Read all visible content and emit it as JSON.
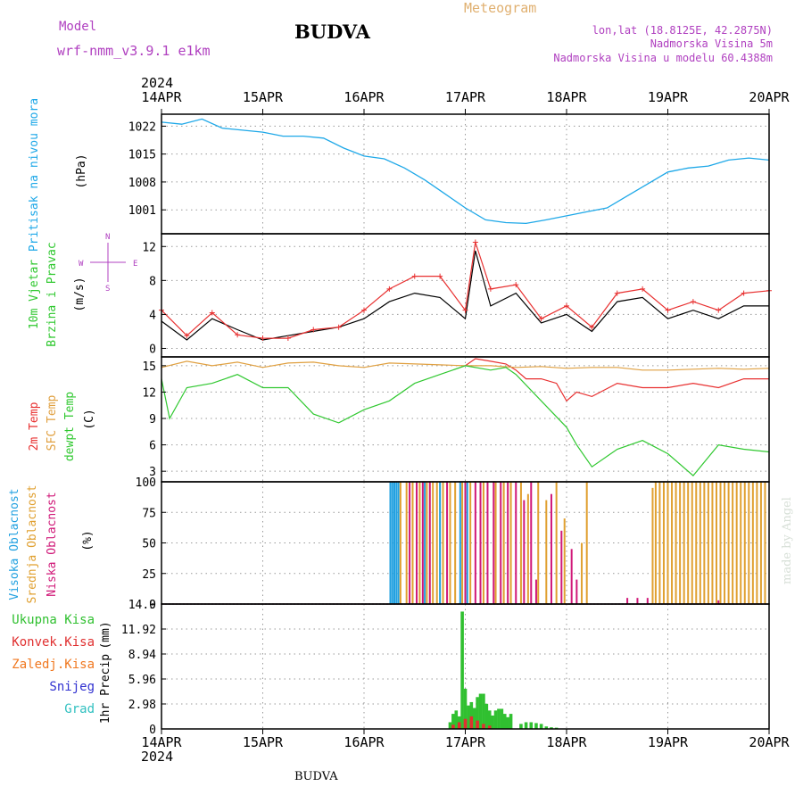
{
  "header": {
    "model_label": "Model",
    "model_name": "wrf-nmm_v3.9.1 e1km",
    "location": "BUDVA",
    "meteogram": "Meteogram",
    "lonlat": "lon,lat (18.8125E, 42.2875N)",
    "elev": "Nadmorska Visina 5m",
    "elev_model": "Nadmorska Visina u modelu 60.4388m",
    "year_top": "2024",
    "year_bottom": "2024",
    "footer_location": "BUDVA",
    "credit": "made by Angel"
  },
  "colors": {
    "pressure": "#1ea8e8",
    "temp2m": "#e83030",
    "sfc": "#e0a040",
    "dewpt": "#30c830",
    "high_cloud": "#20a0e0",
    "mid_cloud": "#e0a030",
    "low_cloud": "#d01878",
    "total_precip": "#30c030",
    "conv_precip": "#e03030",
    "frz_precip": "#f07820",
    "snow": "#3030d0",
    "hail": "#30c0c0",
    "wind_speed": "#000000",
    "wind_gust": "#e83030",
    "title": "#000000",
    "meta": "#b040c0",
    "meteogram": "#e0b070"
  },
  "chart_data": [
    {
      "type": "line",
      "panel": "pressure",
      "ylabel": "Pritisak na nivou mora",
      "unit": "(hPa)",
      "x_ticks": [
        "14APR",
        "15APR",
        "16APR",
        "17APR",
        "18APR",
        "19APR",
        "20APR"
      ],
      "ylim": [
        995,
        1025
      ],
      "yticks": [
        1001,
        1008,
        1015,
        1022
      ],
      "grid": true,
      "series": [
        {
          "x": [
            0,
            0.2,
            0.4,
            0.6,
            0.8,
            1.0,
            1.2,
            1.4,
            1.6,
            1.8,
            2.0,
            2.2,
            2.4,
            2.6,
            2.8,
            3.0,
            3.2,
            3.4,
            3.6,
            3.8,
            4.0,
            4.2,
            4.4,
            4.6,
            4.8,
            5.0,
            5.2,
            5.4,
            5.6,
            5.8,
            6.0
          ],
          "values": [
            1023,
            1022.5,
            1023.8,
            1021.5,
            1021,
            1020.5,
            1019.5,
            1019.5,
            1019,
            1016.5,
            1014.5,
            1013.8,
            1011.5,
            1008.5,
            1005,
            1001.5,
            998.5,
            997.8,
            997.6,
            998.5,
            999.5,
            1000.5,
            1001.5,
            1004.5,
            1007.5,
            1010.5,
            1011.5,
            1012,
            1013.5,
            1014,
            1013.5
          ]
        }
      ]
    },
    {
      "type": "line",
      "panel": "wind",
      "ylabel": "10m Vjetar",
      "ylabel2": "Brzina i Pravac",
      "unit": "(m/s)",
      "compass": {
        "n": "N",
        "s": "S",
        "e": "E",
        "w": "W"
      },
      "ylim": [
        -1,
        13.5
      ],
      "yticks": [
        0,
        4,
        8,
        12
      ],
      "grid": true,
      "series": [
        {
          "name": "speed",
          "x": [
            0,
            0.25,
            0.5,
            0.75,
            1.0,
            1.25,
            1.5,
            1.75,
            2.0,
            2.25,
            2.5,
            2.75,
            3.0,
            3.1,
            3.25,
            3.5,
            3.75,
            4.0,
            4.25,
            4.5,
            4.75,
            5.0,
            5.25,
            5.5,
            5.75,
            6.0
          ],
          "values": [
            3.2,
            1.0,
            3.5,
            2.2,
            1.0,
            1.5,
            2.0,
            2.5,
            3.5,
            5.5,
            6.5,
            6.0,
            3.5,
            11.5,
            5.0,
            6.5,
            3.0,
            4.0,
            2.0,
            5.5,
            6.0,
            3.5,
            4.5,
            3.5,
            5.0,
            5.0
          ]
        },
        {
          "name": "gust",
          "x": [
            0,
            0.25,
            0.5,
            0.75,
            1.0,
            1.25,
            1.5,
            1.75,
            2.0,
            2.25,
            2.5,
            2.75,
            3.0,
            3.1,
            3.25,
            3.5,
            3.75,
            4.0,
            4.25,
            4.5,
            4.75,
            5.0,
            5.25,
            5.5,
            5.75,
            6.0
          ],
          "values": [
            4.5,
            1.5,
            4.2,
            1.6,
            1.2,
            1.2,
            2.2,
            2.5,
            4.5,
            7.0,
            8.5,
            8.5,
            4.5,
            12.5,
            7.0,
            7.5,
            3.5,
            5.0,
            2.5,
            6.5,
            7.0,
            4.5,
            5.5,
            4.5,
            6.5,
            6.8
          ]
        }
      ]
    },
    {
      "type": "line",
      "panel": "temperature",
      "ylabel": "2m Temp",
      "ylabel2": "SFC Temp",
      "ylabel3": "dewpt Temp",
      "unit": "(C)",
      "ylim": [
        1.8,
        16
      ],
      "yticks": [
        3,
        6,
        9,
        12,
        15
      ],
      "grid": true,
      "series": [
        {
          "name": "2m",
          "x": [
            3.0,
            3.1,
            3.25,
            3.4,
            3.5,
            3.6,
            3.75,
            3.9,
            4.0,
            4.1,
            4.25,
            4.5,
            4.75,
            5.0,
            5.25,
            5.5,
            5.75,
            6.0
          ],
          "values": [
            15.0,
            15.8,
            15.5,
            15.2,
            14.5,
            13.5,
            13.5,
            13.0,
            11.0,
            12.0,
            11.5,
            13.0,
            12.5,
            12.5,
            13.0,
            12.5,
            13.5,
            13.5
          ]
        },
        {
          "name": "sfc",
          "x": [
            0,
            0.25,
            0.5,
            0.75,
            1.0,
            1.25,
            1.5,
            1.75,
            2.0,
            2.25,
            2.5,
            2.75,
            3.0,
            3.25,
            3.5,
            3.75,
            4.0,
            4.25,
            4.5,
            4.75,
            5.0,
            5.25,
            5.5,
            5.75,
            6.0
          ],
          "values": [
            14.8,
            15.5,
            15.0,
            15.4,
            14.8,
            15.3,
            15.4,
            15.0,
            14.8,
            15.3,
            15.2,
            15.1,
            15.0,
            15.0,
            14.8,
            14.9,
            14.7,
            14.8,
            14.8,
            14.5,
            14.5,
            14.6,
            14.7,
            14.6,
            14.7
          ]
        },
        {
          "name": "dewpt",
          "x": [
            0,
            0.08,
            0.25,
            0.5,
            0.75,
            1.0,
            1.25,
            1.5,
            1.75,
            2.0,
            2.25,
            2.5,
            2.75,
            3.0,
            3.25,
            3.4,
            3.5,
            3.75,
            4.0,
            4.1,
            4.25,
            4.5,
            4.75,
            5.0,
            5.25,
            5.5,
            5.75,
            6.0
          ],
          "values": [
            13.5,
            9.0,
            12.5,
            13.0,
            14.0,
            12.5,
            12.5,
            9.5,
            8.5,
            10.0,
            11.0,
            13.0,
            14.0,
            15.0,
            14.5,
            14.8,
            14.0,
            11.0,
            8.0,
            6.0,
            3.5,
            5.5,
            6.5,
            5.0,
            2.5,
            6.0,
            5.5,
            5.2
          ]
        }
      ]
    },
    {
      "type": "bar",
      "panel": "cloud",
      "ylabel": "Visoka Oblacnost",
      "ylabel2": "Srednja Oblacnost",
      "ylabel3": "Niska Oblacnost",
      "unit": "(%)",
      "ylim": [
        0,
        100
      ],
      "yticks": [
        0,
        25,
        50,
        75,
        100
      ],
      "grid": true,
      "series": [
        {
          "name": "high",
          "x": [
            2.26,
            2.28,
            2.3,
            2.32,
            2.34,
            2.6,
            2.75,
            2.95,
            3.02
          ],
          "values": [
            100,
            100,
            100,
            100,
            100,
            100,
            100,
            100,
            100
          ]
        },
        {
          "name": "mid",
          "x": [
            2.36,
            2.42,
            2.48,
            2.55,
            2.62,
            2.68,
            2.72,
            2.78,
            2.85,
            2.9,
            2.97,
            3.05,
            3.18,
            3.3,
            3.38,
            3.45,
            3.55,
            3.62,
            3.72,
            3.8,
            3.9,
            3.98,
            4.15,
            4.2,
            4.85,
            4.88,
            4.92,
            4.96,
            5.0,
            5.04,
            5.08,
            5.12,
            5.16,
            5.2,
            5.24,
            5.28,
            5.32,
            5.36,
            5.4,
            5.44,
            5.48,
            5.52,
            5.56,
            5.6,
            5.64,
            5.68,
            5.72,
            5.76,
            5.8,
            5.84,
            5.88,
            5.92,
            5.96
          ],
          "values": [
            100,
            100,
            100,
            100,
            100,
            100,
            100,
            100,
            100,
            100,
            100,
            100,
            100,
            100,
            100,
            100,
            100,
            90,
            100,
            85,
            100,
            70,
            50,
            100,
            95,
            100,
            100,
            100,
            100,
            100,
            100,
            100,
            100,
            100,
            100,
            100,
            100,
            100,
            100,
            100,
            100,
            100,
            100,
            100,
            100,
            100,
            100,
            100,
            100,
            100,
            100,
            100,
            100
          ]
        },
        {
          "name": "low",
          "x": [
            2.45,
            2.52,
            2.58,
            2.65,
            2.82,
            3.0,
            3.1,
            3.15,
            3.22,
            3.28,
            3.35,
            3.42,
            3.5,
            3.58,
            3.65,
            3.7,
            3.85,
            3.95,
            4.05,
            4.1,
            4.6,
            4.7,
            4.8,
            5.5
          ],
          "values": [
            100,
            100,
            100,
            100,
            100,
            100,
            100,
            100,
            100,
            100,
            100,
            100,
            100,
            85,
            100,
            20,
            90,
            60,
            45,
            20,
            5,
            5,
            5,
            3
          ]
        }
      ]
    },
    {
      "type": "bar",
      "panel": "precip",
      "ylabel": "1hr Precip",
      "unit": "(mm)",
      "legend": [
        "Ukupna Kisa",
        "Konvek.Kisa",
        "Zaledj.Kisa",
        "Snijeg",
        "Grad"
      ],
      "ylim": [
        0,
        14.9
      ],
      "yticks": [
        0,
        2.98,
        5.96,
        8.94,
        11.92,
        14.9
      ],
      "ytick_labels": [
        "0",
        "2.98",
        "5.96",
        "8.94",
        "11.92",
        "14.9"
      ],
      "grid": true,
      "series": [
        {
          "name": "total",
          "x": [
            2.85,
            2.88,
            2.91,
            2.94,
            2.97,
            3.0,
            3.03,
            3.06,
            3.09,
            3.12,
            3.15,
            3.18,
            3.21,
            3.24,
            3.27,
            3.3,
            3.33,
            3.36,
            3.39,
            3.42,
            3.45,
            3.55,
            3.6,
            3.65,
            3.7,
            3.75,
            3.8,
            3.85,
            3.9
          ],
          "values": [
            0.8,
            1.8,
            2.2,
            1.5,
            14.0,
            4.8,
            2.8,
            3.2,
            2.5,
            3.8,
            4.2,
            4.2,
            3.0,
            2.2,
            1.6,
            2.2,
            2.4,
            2.4,
            1.8,
            1.4,
            1.8,
            0.6,
            0.8,
            0.8,
            0.7,
            0.6,
            0.3,
            0.2,
            0.15
          ]
        },
        {
          "name": "conv",
          "x": [
            2.88,
            2.94,
            3.0,
            3.06,
            3.12,
            3.18,
            3.24
          ],
          "values": [
            0.5,
            0.8,
            1.2,
            1.5,
            1.0,
            0.6,
            0.4
          ]
        }
      ]
    }
  ]
}
